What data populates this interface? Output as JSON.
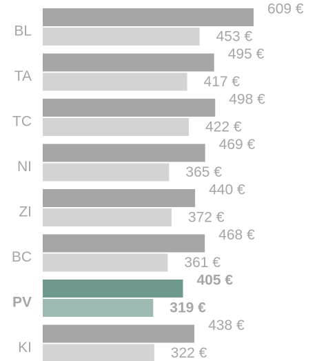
{
  "chart_data": {
    "type": "bar",
    "orientation": "horizontal",
    "categories": [
      "BL",
      "TA",
      "TC",
      "NI",
      "ZI",
      "BC",
      "PV",
      "KI"
    ],
    "series": [
      {
        "color": "#a6a6a6",
        "values": [
          609,
          495,
          498,
          469,
          440,
          468,
          405,
          438
        ],
        "value_labels": [
          "609 €",
          "495 €",
          "498 €",
          "469 €",
          "440 €",
          "468 €",
          "405 €",
          "438 €"
        ]
      },
      {
        "color": "#d3d3d3",
        "values": [
          453,
          417,
          422,
          365,
          372,
          361,
          319,
          322
        ],
        "value_labels": [
          "453 €",
          "417 €",
          "422 €",
          "365 €",
          "372 €",
          "361 €",
          "319 €",
          "322 €"
        ]
      }
    ],
    "highlight_category": 6,
    "highlight_colors": [
      "#6f998f",
      "#9cbab2"
    ]
  }
}
